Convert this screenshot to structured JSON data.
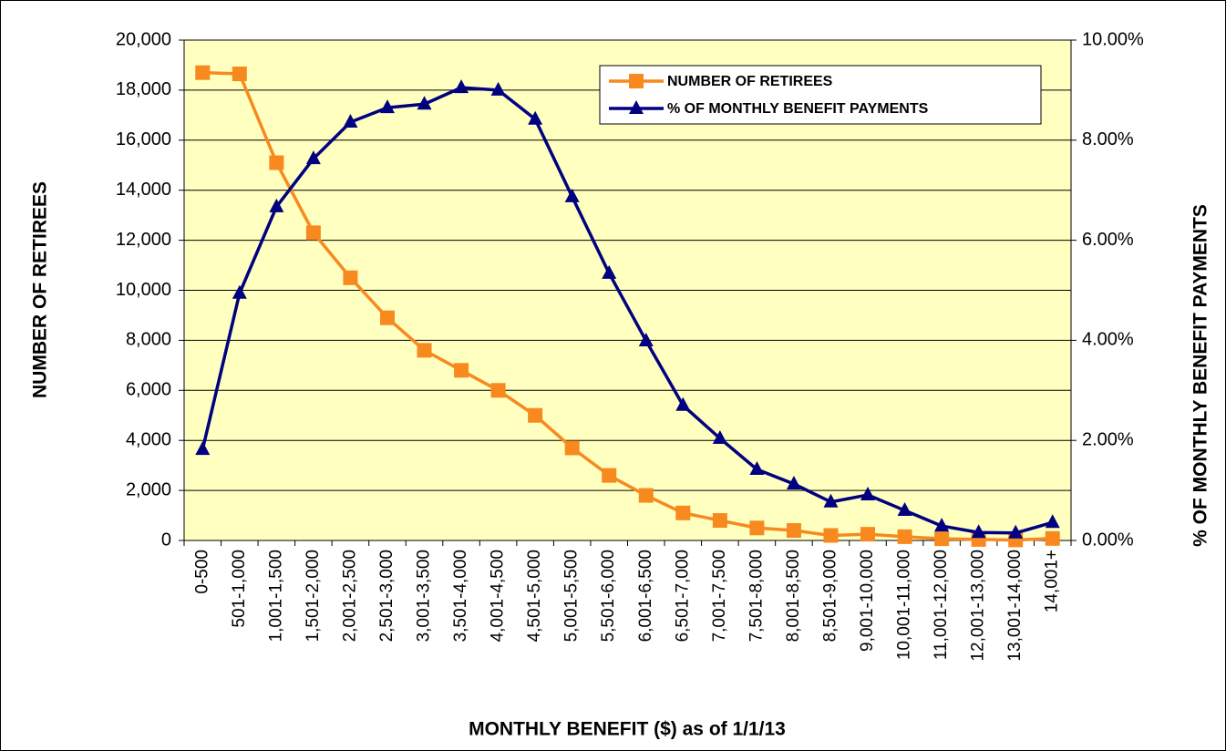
{
  "chart_data": {
    "type": "line",
    "x_label": "MONTHLY BENEFIT ($) as of 1/1/13",
    "y_label": "NUMBER OF RETIREES",
    "y2_label": "% OF MONTHLY BENEFIT PAYMENTS",
    "categories": [
      "0-500",
      "501-1,000",
      "1,001-1,500",
      "1,501-2,000",
      "2,001-2,500",
      "2,501-3,000",
      "3,001-3,500",
      "3,501-4,000",
      "4,001-4,500",
      "4,501-5,000",
      "5,001-5,500",
      "5,501-6,000",
      "6,001-6,500",
      "6,501-7,000",
      "7,001-7,500",
      "7,501-8,000",
      "8,001-8,500",
      "8,501-9,000",
      "9,001-10,000",
      "10,001-11,000",
      "11,001-12,000",
      "12,001-13,000",
      "13,001-14,000",
      "14,001+"
    ],
    "series": [
      {
        "name": "NUMBER OF RETIREES",
        "color": "#f7891f",
        "marker": "square",
        "values": [
          18700,
          18650,
          15100,
          12300,
          10500,
          8900,
          7600,
          6800,
          6000,
          5000,
          3700,
          2600,
          1800,
          1100,
          800,
          500,
          400,
          200,
          250,
          150,
          70,
          40,
          20,
          80
        ]
      },
      {
        "name": "% OF MONTHLY BENEFIT PAYMENTS",
        "color": "#000080",
        "marker": "triangle",
        "axis": "y2",
        "values": [
          1.82,
          4.94,
          6.67,
          7.63,
          8.36,
          8.65,
          8.72,
          9.05,
          9.0,
          8.42,
          6.87,
          5.34,
          3.99,
          2.7,
          2.04,
          1.42,
          1.13,
          0.77,
          0.91,
          0.6,
          0.29,
          0.16,
          0.15,
          0.36
        ]
      }
    ],
    "ylim": [
      0,
      20000
    ],
    "yticks": [
      {
        "value": 0,
        "label": "0"
      },
      {
        "value": 2000,
        "label": "2,000"
      },
      {
        "value": 4000,
        "label": "4,000"
      },
      {
        "value": 6000,
        "label": "6,000"
      },
      {
        "value": 8000,
        "label": "8,000"
      },
      {
        "value": 10000,
        "label": "10,000"
      },
      {
        "value": 12000,
        "label": "12,000"
      },
      {
        "value": 14000,
        "label": "14,000"
      },
      {
        "value": 16000,
        "label": "16,000"
      },
      {
        "value": 18000,
        "label": "18,000"
      },
      {
        "value": 20000,
        "label": "20,000"
      }
    ],
    "y2lim": [
      0,
      10
    ],
    "y2ticks": [
      {
        "value": 0,
        "label": "0.00%"
      },
      {
        "value": 2,
        "label": "2.00%"
      },
      {
        "value": 4,
        "label": "4.00%"
      },
      {
        "value": 6,
        "label": "6.00%"
      },
      {
        "value": 8,
        "label": "8.00%"
      },
      {
        "value": 10,
        "label": "10.00%"
      }
    ],
    "grid": true,
    "legend": "upper right",
    "plot_background": "#ffffc0"
  }
}
